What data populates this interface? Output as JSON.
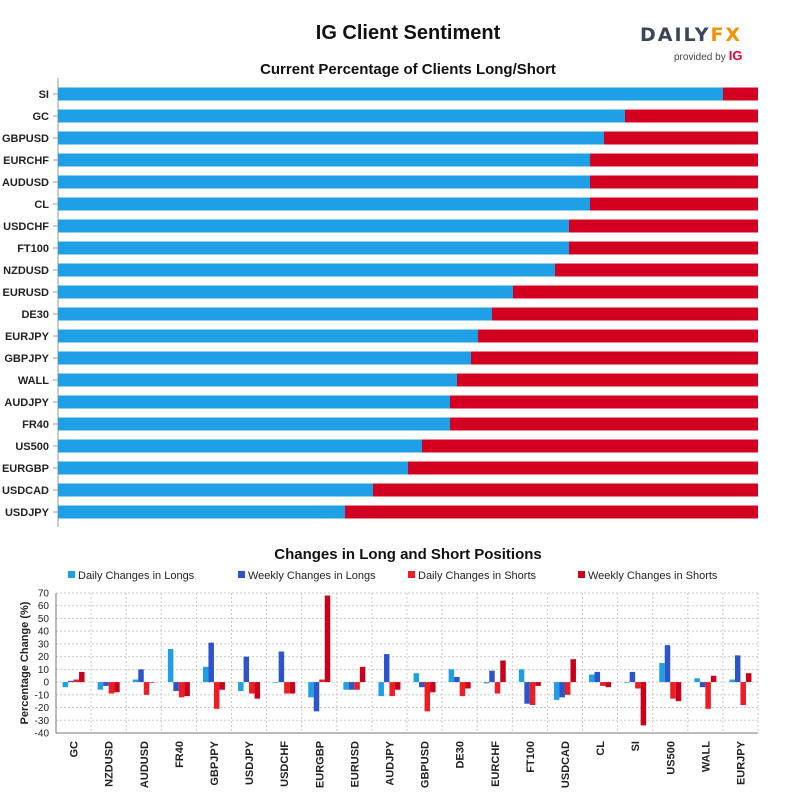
{
  "header": {
    "title": "IG Client Sentiment",
    "logo_text_a": "DAILY",
    "logo_text_b": "FX",
    "logo_sub": "provided by",
    "logo_ig": "IG"
  },
  "colors": {
    "long": "#1f9fe6",
    "short": "#d40020",
    "daily_longs": "#1f9fe6",
    "weekly_longs": "#2d54c8",
    "daily_shorts": "#ec1d24",
    "weekly_shorts": "#c8001c"
  },
  "chart_data": [
    {
      "type": "bar",
      "orientation": "horizontal",
      "stacked": true,
      "title": "Current Percentage of Clients Long/Short",
      "categories": [
        "SI",
        "GC",
        "GBPUSD",
        "EURCHF",
        "AUDUSD",
        "CL",
        "USDCHF",
        "FT100",
        "NZDUSD",
        "EURUSD",
        "DE30",
        "EURJPY",
        "GBPJPY",
        "WALL",
        "AUDJPY",
        "FR40",
        "US500",
        "EURGBP",
        "USDCAD",
        "USDJPY"
      ],
      "series": [
        {
          "values": [
            95,
            81,
            78,
            76,
            76,
            76,
            73,
            73,
            71,
            65,
            62,
            60,
            59,
            57,
            56,
            56,
            52,
            50,
            45,
            41
          ]
        },
        {
          "values": [
            5,
            19,
            22,
            24,
            24,
            24,
            27,
            27,
            29,
            35,
            38,
            40,
            41,
            43,
            44,
            44,
            48,
            50,
            55,
            59
          ]
        }
      ],
      "xlim": [
        0,
        100
      ]
    },
    {
      "type": "bar",
      "title": "Changes in Long and Short Positions",
      "ylabel": "Percentage Change (%)",
      "ylim": [
        -40,
        70
      ],
      "yticks": [
        -40,
        -30,
        -20,
        -10,
        0,
        10,
        20,
        30,
        40,
        50,
        60,
        70
      ],
      "grid": true,
      "legend_position": "top",
      "categories": [
        "GC",
        "NZDUSD",
        "AUDUSD",
        "FR40",
        "GBPJPY",
        "USDJPY",
        "USDCHF",
        "EURGBP",
        "EURUSD",
        "AUDJPY",
        "GBPUSD",
        "DE30",
        "EURCHF",
        "FT100",
        "USDCAD",
        "CL",
        "SI",
        "US500",
        "WALL",
        "EURJPY"
      ],
      "series": [
        {
          "name": "Daily Changes in Longs",
          "values": [
            -4,
            -6,
            2,
            26,
            12,
            -7,
            0,
            -12,
            -6,
            -11,
            7,
            10,
            -1,
            10,
            -14,
            6,
            0,
            15,
            3,
            2
          ]
        },
        {
          "name": "Weekly Changes in Longs",
          "values": [
            1,
            -3,
            10,
            -7,
            31,
            20,
            24,
            -23,
            -6,
            22,
            -4,
            4,
            9,
            -17,
            -12,
            8,
            8,
            29,
            -4,
            21
          ]
        },
        {
          "name": "Daily Changes in Shorts",
          "values": [
            2,
            -9,
            -10,
            -12,
            -21,
            -9,
            -9,
            2,
            -6,
            -11,
            -23,
            -11,
            -9,
            -18,
            -10,
            -3,
            -5,
            -13,
            -21,
            -18
          ]
        },
        {
          "name": "Weekly Changes in Shorts",
          "values": [
            8,
            -8,
            0,
            -11,
            -6,
            -13,
            -9,
            68,
            12,
            -6,
            -8,
            -5,
            17,
            -3,
            18,
            -4,
            -34,
            -15,
            5,
            7
          ]
        }
      ]
    }
  ]
}
